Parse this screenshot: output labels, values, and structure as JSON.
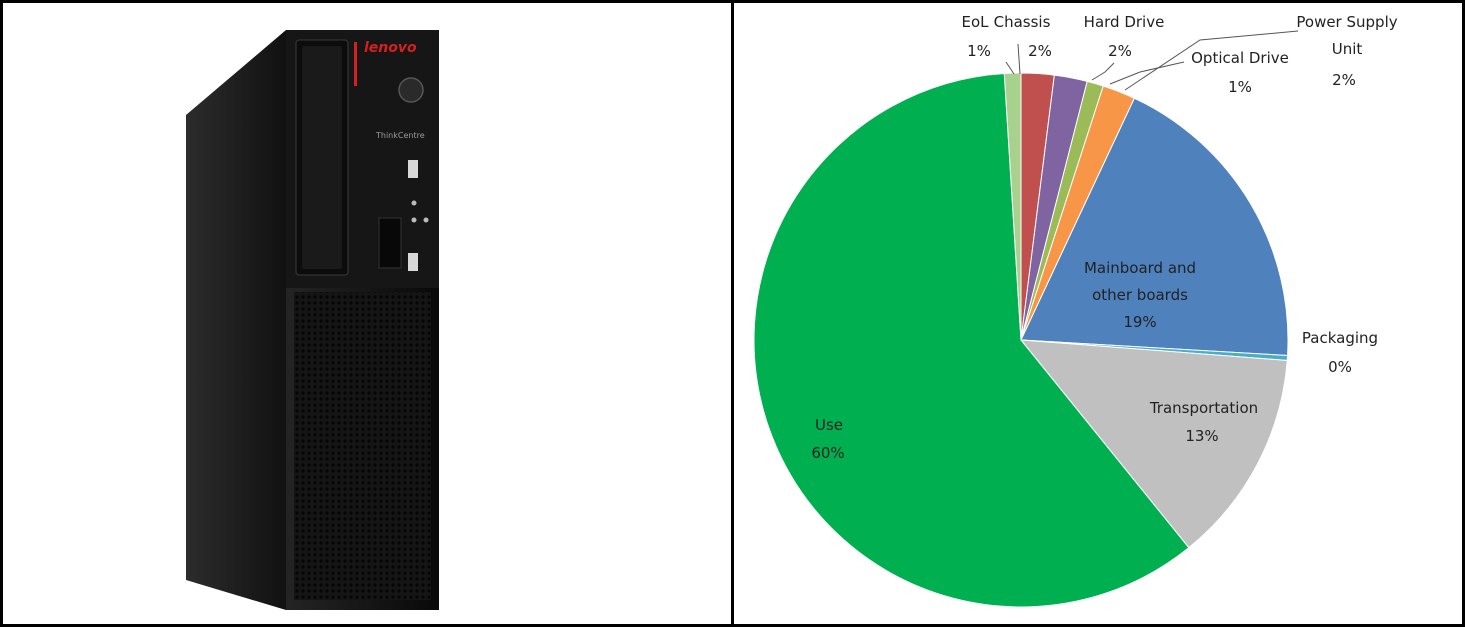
{
  "product_photo": {
    "brand_logo": "lenovo",
    "model_label": "ThinkCentre",
    "colors": {
      "case": "#1c1c1c",
      "accent_red": "#d62020",
      "mesh": "#0f0f0f"
    }
  },
  "chart_data": {
    "type": "pie",
    "title": "",
    "start_angle_deg": 0,
    "direction": "clockwise",
    "slices": [
      {
        "name": "Chassis",
        "value": 2,
        "label_pct": "2%",
        "color": "#c0504d"
      },
      {
        "name": "Hard Drive",
        "value": 2,
        "label_pct": "2%",
        "color": "#8064a2"
      },
      {
        "name": "Optical Drive",
        "value": 1,
        "label_pct": "1%",
        "color": "#9bbb59"
      },
      {
        "name": "Power Supply Unit",
        "value": 2,
        "label_pct": "2%",
        "color": "#f79646"
      },
      {
        "name": "Mainboard and other boards",
        "value": 19,
        "label_pct": "19%",
        "color": "#4f81bd"
      },
      {
        "name": "Packaging",
        "value": 0.3,
        "label_pct": "0%",
        "color": "#4bacc6"
      },
      {
        "name": "Transportation",
        "value": 13,
        "label_pct": "13%",
        "color": "#c0c0c0"
      },
      {
        "name": "Use",
        "value": 60,
        "label_pct": "60%",
        "color": "#00b050"
      },
      {
        "name": "EoL",
        "value": 1,
        "label_pct": "1%",
        "color": "#a9d18e"
      }
    ],
    "legend": "none",
    "data_labels": "name and percent"
  }
}
